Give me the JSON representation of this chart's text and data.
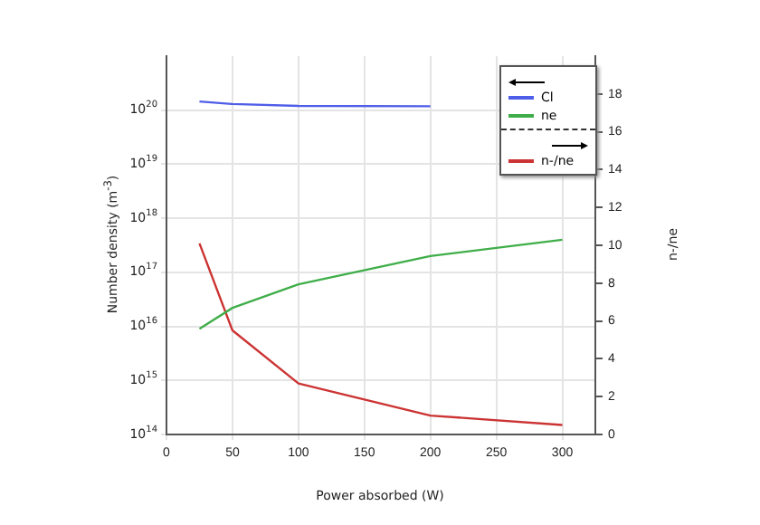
{
  "chart_data": {
    "type": "line",
    "xlabel": "Power absorbed (W)",
    "ylabel": "Number density (m$^{-3}$)",
    "y2label": "n-/ne",
    "x": [
      25,
      50,
      100,
      200,
      300
    ],
    "series": [
      {
        "name": "Cl",
        "color": "#4f5ee8",
        "values": [
          1.45e+20,
          1.3e+20,
          1.2e+20,
          1.18e+20,
          null
        ]
      },
      {
        "name": "ne",
        "color": "#3fae49",
        "values": [
          9000000000000000.0,
          2.2e+16,
          6e+16,
          2e+17,
          4e+17
        ]
      },
      {
        "name": "n-/ne",
        "color": "#cc3333",
        "axis": "y2",
        "values": [
          10.1,
          5.5,
          2.7,
          1.0,
          0.5
        ]
      }
    ],
    "xlim": [
      0,
      325
    ],
    "xticks": [
      0,
      50,
      100,
      150,
      200,
      250,
      300
    ],
    "log": "y",
    "ylim": [
      100000000000000.0,
      1e+21
    ],
    "yticks": [
      {
        "value": 100000000000000.0,
        "label": "10$^{14}$"
      },
      {
        "value": 1000000000000000.0,
        "label": "10$^{15}$"
      },
      {
        "value": 1e+16,
        "label": "10$^{16}$"
      },
      {
        "value": 1e+17,
        "label": "10$^{17}$"
      },
      {
        "value": 1e+18,
        "label": "10$^{18}$"
      },
      {
        "value": 1e+19,
        "label": "10$^{19}$"
      },
      {
        "value": 1e+20,
        "label": "10$^{20}$"
      }
    ],
    "y2lim": [
      0,
      20
    ],
    "y2ticks": [
      0,
      2,
      4,
      6,
      8,
      10,
      12,
      14,
      16,
      18
    ],
    "grid": true,
    "legend": "top right",
    "marker": "none",
    "line_style": "solid"
  }
}
